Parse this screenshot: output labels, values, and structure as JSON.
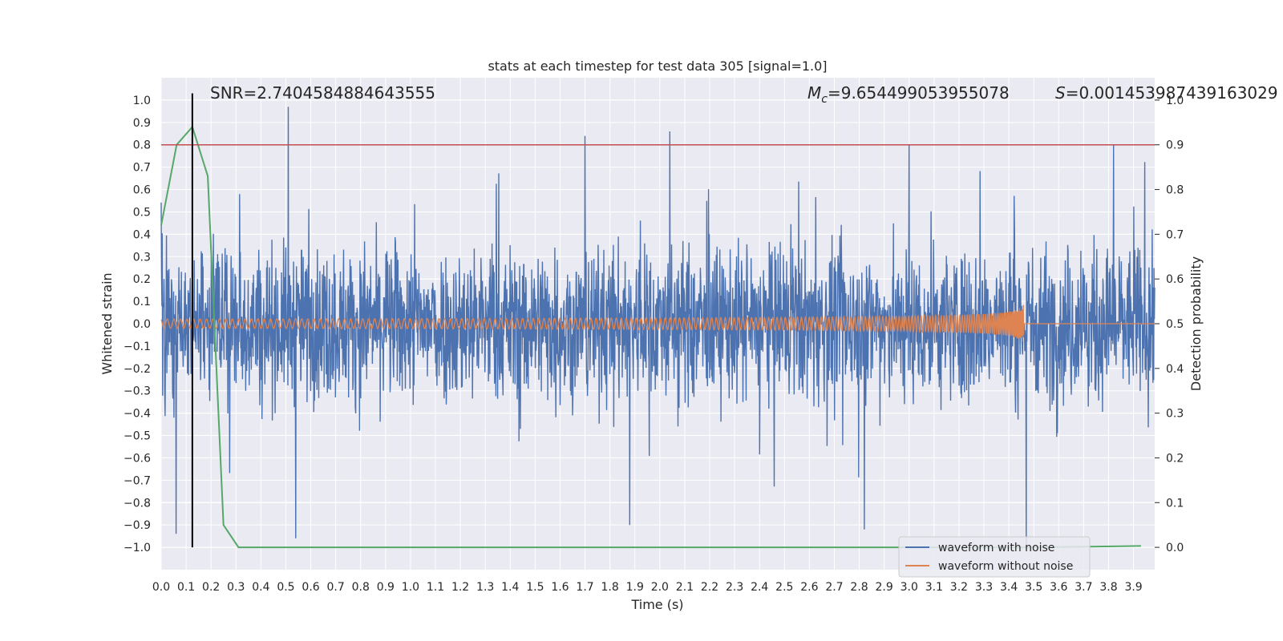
{
  "chart_data": {
    "type": "line",
    "title": "stats at each timestep for test data 305 [signal=1.0]",
    "xlabel": "Time (s)",
    "ylabel": "Whitened strain",
    "ylabel_right": "Detection probability",
    "xlim": [
      0.0,
      4.0
    ],
    "ylim": [
      -1.1,
      1.1
    ],
    "ylim_right": [
      -0.05,
      1.0
    ],
    "x_ticks": [
      "0.0",
      "0.1",
      "0.2",
      "0.3",
      "0.4",
      "0.5",
      "0.6",
      "0.7",
      "0.8",
      "0.9",
      "1.0",
      "1.1",
      "1.2",
      "1.3",
      "1.4",
      "1.5",
      "1.6",
      "1.7",
      "1.8",
      "1.9",
      "2.0",
      "2.1",
      "2.2",
      "2.3",
      "2.4",
      "2.5",
      "2.6",
      "2.7",
      "2.8",
      "2.9",
      "3.0",
      "3.1",
      "3.2",
      "3.3",
      "3.4",
      "3.5",
      "3.6",
      "3.7",
      "3.8",
      "3.9"
    ],
    "y_ticks": [
      "1.0",
      "0.9",
      "0.8",
      "0.7",
      "0.6",
      "0.5",
      "0.4",
      "0.3",
      "0.2",
      "0.1",
      "0.0",
      "−0.1",
      "−0.2",
      "−0.3",
      "−0.4",
      "−0.5",
      "−0.6",
      "−0.7",
      "−0.8",
      "−0.9",
      "−1.0"
    ],
    "y_ticks_right": [
      "1.0",
      "0.9",
      "0.8",
      "0.7",
      "0.6",
      "0.5",
      "0.4",
      "0.3",
      "0.2",
      "0.1",
      "0.0"
    ],
    "grid": true,
    "legend_position": "bottom-right",
    "annotations": {
      "snr": "SNR=2.7404584884643555",
      "mc_symbol": "M",
      "mc_sub": "c",
      "mc_value": "=9.654499053955078",
      "s_symbol": "S",
      "s_value": "=0.001453987439163029"
    },
    "vertical_marker_x": 0.125,
    "threshold_right": 0.9,
    "series": [
      {
        "name": "waveform with noise",
        "color": "#4c72b0",
        "kind": "noise",
        "peaks": [
          {
            "x": 0.51,
            "y": 0.97
          },
          {
            "x": 0.54,
            "y": -0.96
          },
          {
            "x": 0.06,
            "y": -0.94
          },
          {
            "x": 1.7,
            "y": 0.84
          },
          {
            "x": 2.04,
            "y": 0.86
          },
          {
            "x": 3.0,
            "y": 0.8
          },
          {
            "x": 3.82,
            "y": 0.8
          },
          {
            "x": 3.47,
            "y": -1.0
          },
          {
            "x": 2.82,
            "y": -0.92
          },
          {
            "x": 1.88,
            "y": -0.9
          }
        ]
      },
      {
        "name": "waveform without noise",
        "color": "#dd8452",
        "kind": "chirp",
        "merger_time": 3.46,
        "max_amplitude": 0.09
      },
      {
        "name": "detection probability",
        "color": "#55a868",
        "axis": "right",
        "x": [
          0.0,
          0.062,
          0.125,
          0.187,
          0.25,
          0.31,
          0.5,
          1.0,
          1.5,
          2.0,
          2.5,
          3.0,
          3.5,
          3.93
        ],
        "y": [
          0.72,
          0.9,
          0.94,
          0.83,
          0.05,
          0.0,
          0.0,
          0.0,
          0.0,
          0.0,
          0.0,
          0.0,
          0.0,
          0.003
        ]
      }
    ],
    "colors": {
      "background": "#eaeaf2",
      "grid": "#ffffff",
      "threshold": "#c44e52",
      "marker": "#000000"
    }
  }
}
